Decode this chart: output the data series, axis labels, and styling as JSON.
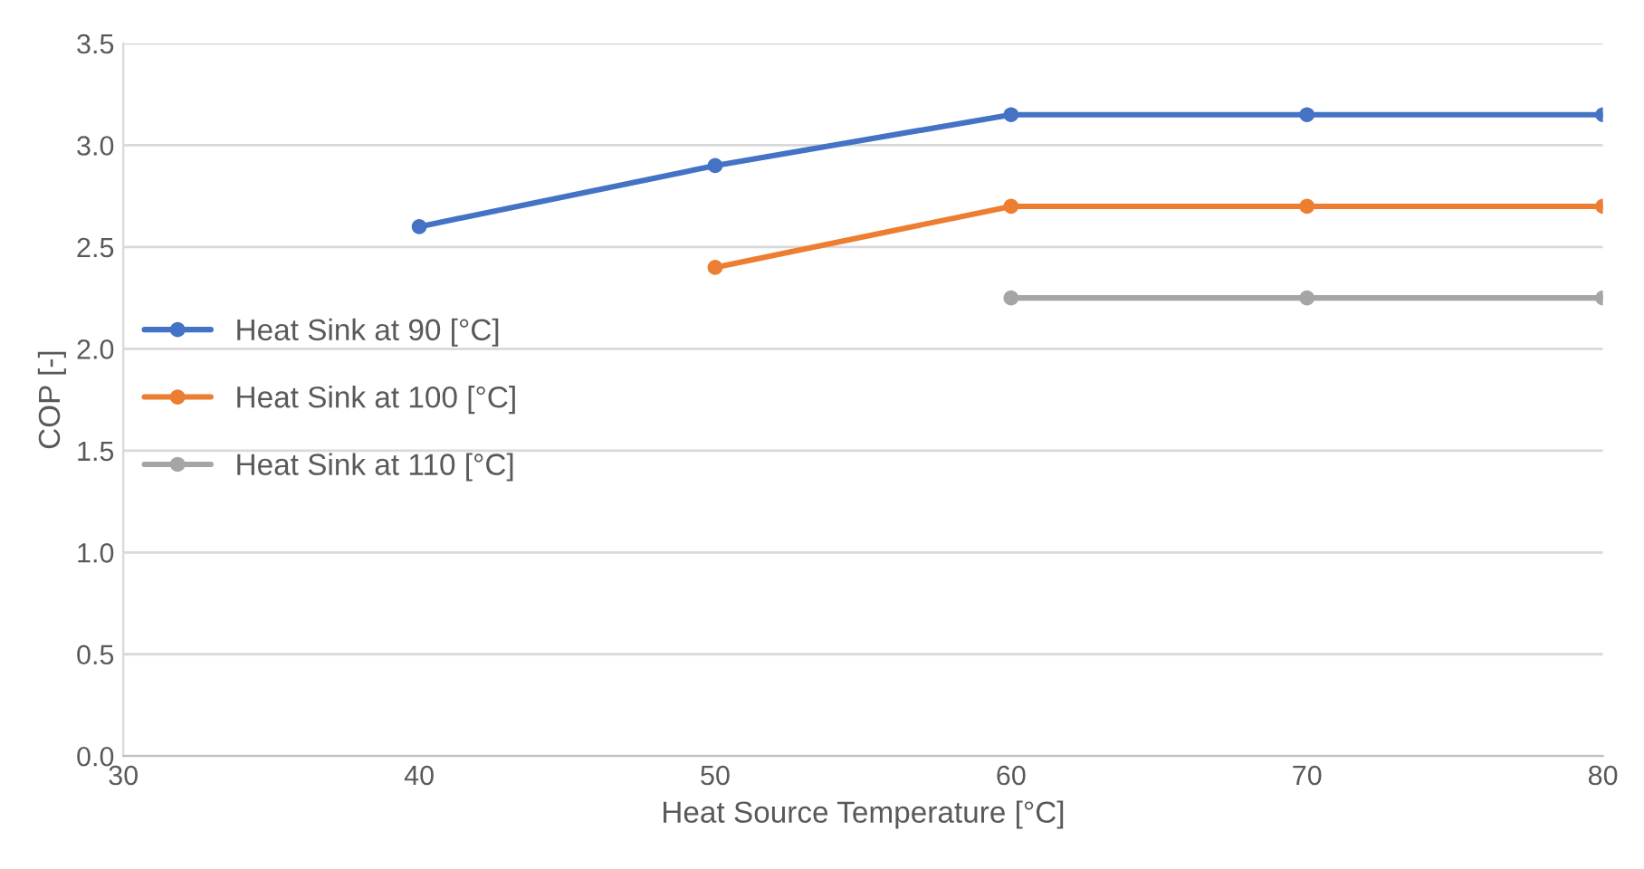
{
  "chart_data": {
    "type": "line",
    "xlabel": "Heat Source Temperature [°C]",
    "ylabel": "COP [-]",
    "x": [
      40,
      50,
      60,
      70,
      80
    ],
    "series": [
      {
        "name": "Heat Sink at 90 [°C]",
        "color": "#4472c4",
        "values": [
          2.6,
          2.9,
          3.15,
          3.15,
          3.15
        ]
      },
      {
        "name": "Heat Sink at 100 [°C]",
        "color": "#ed7d31",
        "values": [
          null,
          2.4,
          2.7,
          2.7,
          2.7
        ]
      },
      {
        "name": "Heat Sink at 110 [°C]",
        "color": "#a5a5a5",
        "values": [
          null,
          null,
          2.25,
          2.25,
          2.25
        ]
      }
    ],
    "xlim": [
      30,
      80
    ],
    "xticks": [
      30,
      40,
      50,
      60,
      70,
      80
    ],
    "ylim": [
      0,
      3.5
    ],
    "yticks": [
      {
        "value": 0,
        "label": "0.0"
      },
      {
        "value": 0.5,
        "label": "0.5"
      },
      {
        "value": 1,
        "label": "1.0"
      },
      {
        "value": 1.5,
        "label": "1.5"
      },
      {
        "value": 2,
        "label": "2.0"
      },
      {
        "value": 2.5,
        "label": "2.5"
      },
      {
        "value": 3,
        "label": "3.0"
      },
      {
        "value": 3.5,
        "label": "3.5"
      }
    ],
    "grid": "y",
    "legend": "center left",
    "marker": "circle",
    "line_style": "solid"
  }
}
